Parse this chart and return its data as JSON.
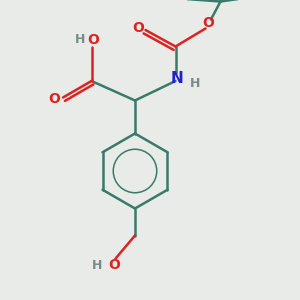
{
  "bg_color": "#e8ebe8",
  "bond_color": "#3a7a6a",
  "o_color": "#dd2222",
  "n_color": "#2222cc",
  "h_color": "#7a8a8a",
  "line_width": 1.8,
  "fig_size": [
    3.0,
    3.0
  ],
  "dpi": 100,
  "xlim": [
    0,
    10
  ],
  "ylim": [
    0,
    10
  ]
}
